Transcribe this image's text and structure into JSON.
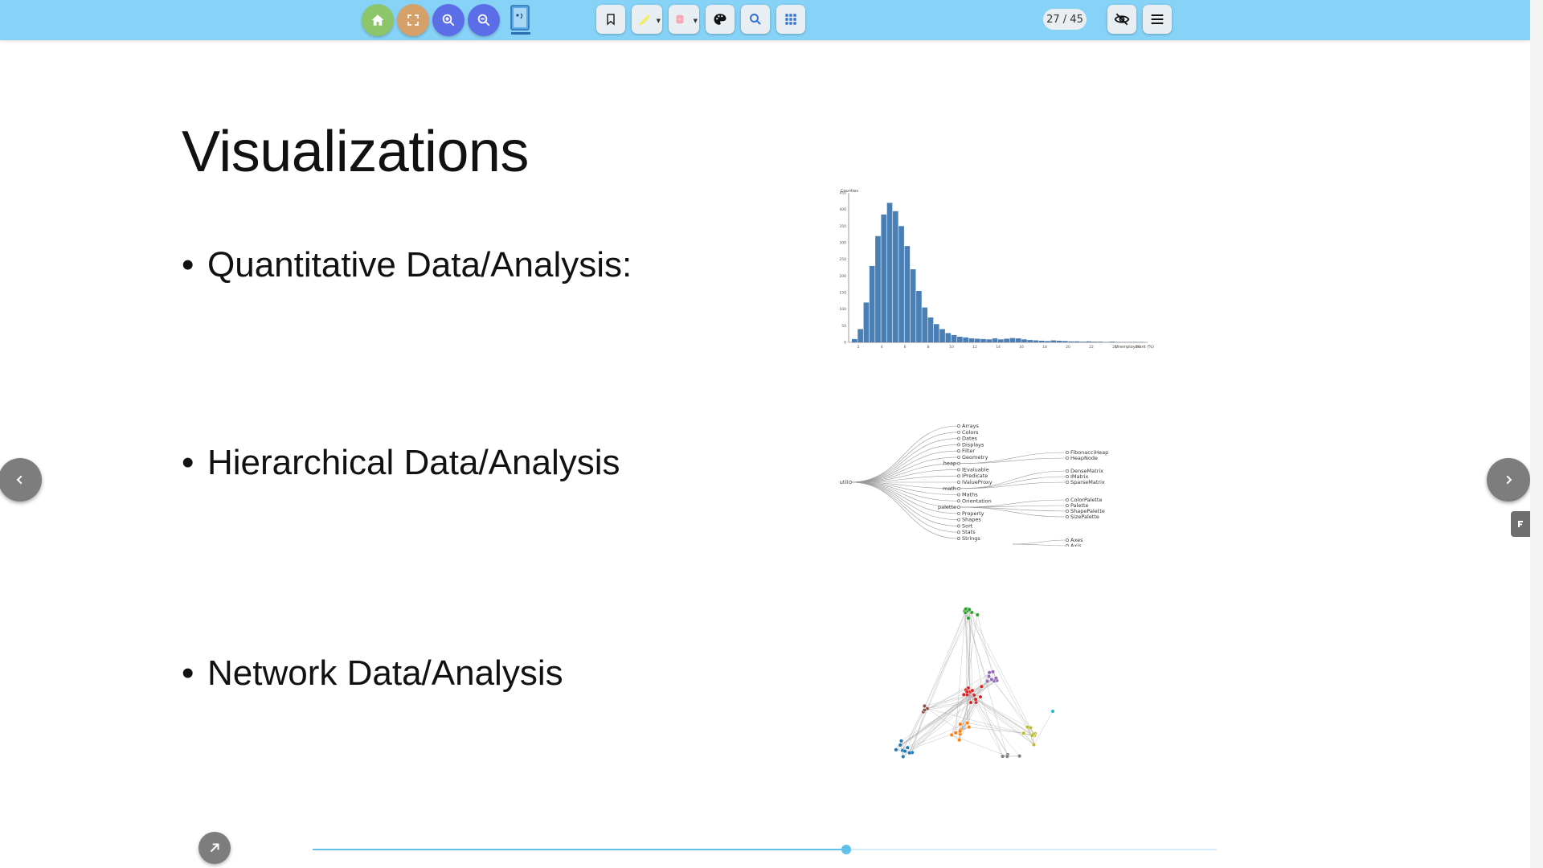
{
  "toolbar": {
    "page_counter": "27 / 45",
    "buttons": [
      {
        "name": "home-button",
        "icon": "home-icon",
        "color": "#8cc56a"
      },
      {
        "name": "fullscreen-button",
        "icon": "fullscreen-icon",
        "color": "#d6a06b"
      },
      {
        "name": "zoom-in-button",
        "icon": "zoom-in-icon",
        "color": "#5b6ee8"
      },
      {
        "name": "zoom-out-button",
        "icon": "zoom-out-icon",
        "color": "#5b6ee8"
      }
    ]
  },
  "slide": {
    "title": "Visualizations",
    "bullets": [
      {
        "dot": "•",
        "text": "Quantitative Data/Analysis:"
      },
      {
        "dot": "•",
        "text": "Hierarchical Data/Analysis"
      },
      {
        "dot": "•",
        "text": "Network Data/Analysis"
      }
    ]
  },
  "histogram": {
    "legend": "Counties",
    "xlabel": "Unemployment (%)",
    "y_ticks": [
      "450",
      "400",
      "350",
      "300",
      "250",
      "200",
      "150",
      "100",
      "50",
      "0"
    ],
    "x_ticks": [
      "2",
      "4",
      "6",
      "8",
      "10",
      "12",
      "14",
      "16",
      "18",
      "20",
      "22",
      "24",
      "26"
    ],
    "bar_color": "#4a7fb5",
    "counts": [
      10,
      40,
      120,
      230,
      320,
      385,
      420,
      395,
      350,
      290,
      220,
      155,
      105,
      75,
      55,
      40,
      28,
      22,
      17,
      15,
      12,
      11,
      10,
      9,
      12,
      9,
      11,
      13,
      12,
      9,
      7,
      6,
      5,
      4,
      6,
      5,
      4,
      3,
      3,
      2,
      3,
      2,
      2,
      1,
      2,
      1,
      1,
      1,
      1,
      1
    ]
  },
  "tree": {
    "root": "util",
    "children": [
      "Arrays",
      "Colors",
      "Dates",
      "Displays",
      "Filter",
      "Geometry",
      "heap",
      "IEvaluable",
      "IPredicate",
      "IValueProxy",
      "math",
      "Maths",
      "Orientation",
      "palette",
      "Property",
      "Shapes",
      "Sort",
      "Stats",
      "Strings"
    ],
    "heap_children": [
      "FibonacciHeap",
      "HeapNode"
    ],
    "math_children": [
      "DenseMatrix",
      "IMatrix",
      "SparseMatrix"
    ],
    "palette_children": [
      "ColorPalette",
      "Palette",
      "ShapePalette",
      "SizePalette"
    ],
    "extra_children": [
      "Axes",
      "Axis"
    ]
  },
  "network": {
    "groups": [
      {
        "color": "#2ca02c",
        "count": 10
      },
      {
        "color": "#d62728",
        "count": 14
      },
      {
        "color": "#9467bd",
        "count": 8
      },
      {
        "color": "#ff7f0e",
        "count": 9
      },
      {
        "color": "#1f77b4",
        "count": 10
      },
      {
        "color": "#bcbd22",
        "count": 10
      },
      {
        "color": "#8c564b",
        "count": 4
      },
      {
        "color": "#17becf",
        "count": 1
      },
      {
        "color": "#7f7f7f",
        "count": 4
      }
    ]
  },
  "progress": {
    "fraction": 0.59
  }
}
